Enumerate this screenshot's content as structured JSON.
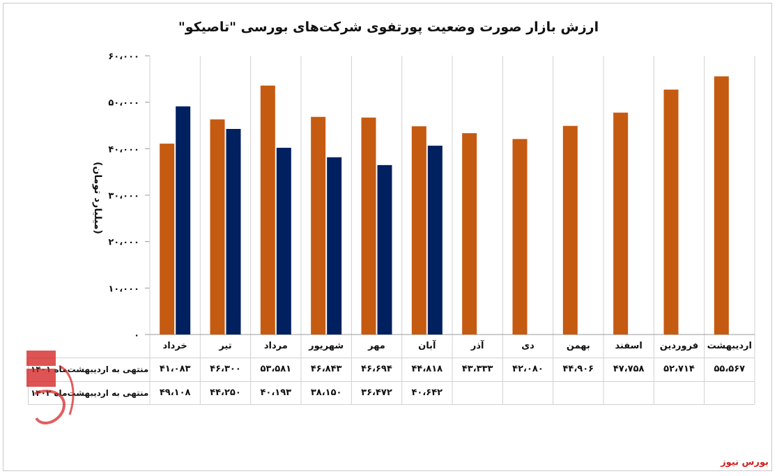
{
  "chart_data": {
    "type": "bar",
    "title": "ارزش بازار صورت وضعیت پورتفوی شرکت‌های بورسی \"تاصیکو\"",
    "ylabel": "(میلیارد تومان)",
    "ylim": [
      0,
      60000
    ],
    "yticks": [
      "۰",
      "۱۰،۰۰۰",
      "۲۰،۰۰۰",
      "۳۰،۰۰۰",
      "۴۰،۰۰۰",
      "۵۰،۰۰۰",
      "۶۰،۰۰۰"
    ],
    "grid": "vertical",
    "legend": "table-left",
    "categories": [
      "خرداد",
      "تیر",
      "مرداد",
      "شهریور",
      "مهر",
      "آبان",
      "آذر",
      "دی",
      "بهمن",
      "اسفند",
      "فروردین",
      "اردیبهشت"
    ],
    "series": [
      {
        "name": "منتهی به اردیبهشت‌ماه ۱۴۰۱",
        "color": "#c55a11",
        "values": [
          41083,
          46300,
          53581,
          46843,
          46694,
          44818,
          43333,
          42080,
          44906,
          47758,
          52714,
          55567
        ],
        "labels": [
          "۴۱،۰۸۳",
          "۴۶،۳۰۰",
          "۵۳،۵۸۱",
          "۴۶،۸۴۳",
          "۴۶،۶۹۴",
          "۴۴،۸۱۸",
          "۴۳،۳۳۳",
          "۴۲،۰۸۰",
          "۴۴،۹۰۶",
          "۴۷،۷۵۸",
          "۵۲،۷۱۴",
          "۵۵،۵۶۷"
        ]
      },
      {
        "name": "منتهی به اردیبهشت‌ماه ۱۴۰۲",
        "color": "#002060",
        "values": [
          49108,
          44250,
          40193,
          38150,
          36472,
          40642,
          null,
          null,
          null,
          null,
          null,
          null
        ],
        "labels": [
          "۴۹،۱۰۸",
          "۴۴،۲۵۰",
          "۴۰،۱۹۳",
          "۳۸،۱۵۰",
          "۳۶،۴۷۲",
          "۴۰،۶۴۲",
          "",
          "",
          "",
          "",
          "",
          ""
        ]
      }
    ]
  },
  "watermark_text": "بورس نیوز",
  "source": "بورس نیوز"
}
